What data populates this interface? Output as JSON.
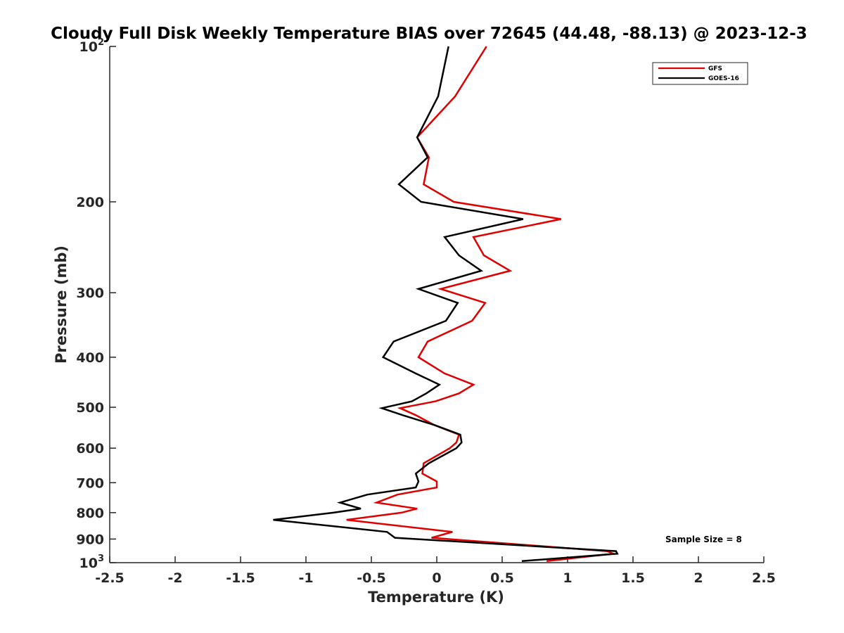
{
  "chart_data": {
    "type": "line",
    "title": "Cloudy Full Disk Weekly Temperature BIAS over 72645 (44.48, -88.13) @ 2023-12-3",
    "xlabel": "Temperature (K)",
    "ylabel": "Pressure (mb)",
    "xlim": [
      -2.5,
      2.5
    ],
    "ylim": [
      100,
      1000
    ],
    "y_scale": "log",
    "y_reversed": true,
    "grid": false,
    "legend_position": "top-right",
    "x_ticks": [
      "-2.5",
      "-2",
      "-1.5",
      "-1",
      "-0.5",
      "0",
      "0.5",
      "1",
      "1.5",
      "2",
      "2.5"
    ],
    "x_tick_values": [
      -2.5,
      -2,
      -1.5,
      -1,
      -0.5,
      0,
      0.5,
      1,
      1.5,
      2,
      2.5
    ],
    "y_ticks": [
      {
        "value": 100,
        "base": "10",
        "exp": "2"
      },
      {
        "value": 200,
        "label": "200"
      },
      {
        "value": 300,
        "label": "300"
      },
      {
        "value": 400,
        "label": "400"
      },
      {
        "value": 500,
        "label": "500"
      },
      {
        "value": 600,
        "label": "600"
      },
      {
        "value": 700,
        "label": "700"
      },
      {
        "value": 800,
        "label": "800"
      },
      {
        "value": 900,
        "label": "900"
      },
      {
        "value": 1000,
        "base": "10",
        "exp": "3"
      }
    ],
    "annotation": "Sample Size = 8",
    "series": [
      {
        "name": "GFS",
        "color": "#e00000",
        "points": [
          [
            0.38,
            100
          ],
          [
            0.14,
            125
          ],
          [
            -0.15,
            150
          ],
          [
            -0.06,
            164
          ],
          [
            -0.1,
            185
          ],
          [
            0.13,
            200
          ],
          [
            0.95,
            216
          ],
          [
            0.28,
            234
          ],
          [
            0.36,
            254
          ],
          [
            0.56,
            272
          ],
          [
            0.03,
            295
          ],
          [
            0.37,
            314
          ],
          [
            0.27,
            340
          ],
          [
            -0.07,
            373
          ],
          [
            -0.14,
            400
          ],
          [
            0.06,
            430
          ],
          [
            0.28,
            452
          ],
          [
            0.17,
            470
          ],
          [
            -0.01,
            487
          ],
          [
            -0.28,
            502
          ],
          [
            -0.16,
            518
          ],
          [
            -0.02,
            541
          ],
          [
            0.17,
            565
          ],
          [
            0.15,
            585
          ],
          [
            0.1,
            600
          ],
          [
            -0.1,
            642
          ],
          [
            -0.11,
            672
          ],
          [
            0.0,
            696
          ],
          [
            0.0,
            715
          ],
          [
            -0.3,
            738
          ],
          [
            -0.46,
            765
          ],
          [
            -0.15,
            786
          ],
          [
            -0.27,
            800
          ],
          [
            -0.69,
            826
          ],
          [
            0.12,
            872
          ],
          [
            -0.04,
            895
          ],
          [
            1.3,
            950
          ],
          [
            1.35,
            961
          ],
          [
            0.84,
            993
          ]
        ]
      },
      {
        "name": "GOES-16",
        "color": "#000000",
        "points": [
          [
            0.09,
            100
          ],
          [
            0.01,
            125
          ],
          [
            -0.15,
            150
          ],
          [
            -0.07,
            164
          ],
          [
            -0.29,
            185
          ],
          [
            -0.12,
            200
          ],
          [
            0.66,
            216
          ],
          [
            0.06,
            234
          ],
          [
            0.17,
            254
          ],
          [
            0.34,
            272
          ],
          [
            -0.14,
            295
          ],
          [
            0.16,
            314
          ],
          [
            0.07,
            340
          ],
          [
            -0.33,
            373
          ],
          [
            -0.41,
            400
          ],
          [
            -0.16,
            430
          ],
          [
            0.02,
            452
          ],
          [
            -0.08,
            470
          ],
          [
            -0.19,
            487
          ],
          [
            -0.42,
            502
          ],
          [
            -0.26,
            518
          ],
          [
            -0.02,
            541
          ],
          [
            0.18,
            565
          ],
          [
            0.19,
            585
          ],
          [
            0.15,
            600
          ],
          [
            -0.06,
            642
          ],
          [
            -0.16,
            672
          ],
          [
            -0.14,
            696
          ],
          [
            -0.16,
            715
          ],
          [
            -0.53,
            738
          ],
          [
            -0.74,
            765
          ],
          [
            -0.58,
            786
          ],
          [
            -0.79,
            800
          ],
          [
            -1.25,
            826
          ],
          [
            -0.38,
            872
          ],
          [
            -0.32,
            895
          ],
          [
            1.37,
            950
          ],
          [
            1.38,
            961
          ],
          [
            0.65,
            993
          ]
        ]
      }
    ]
  }
}
